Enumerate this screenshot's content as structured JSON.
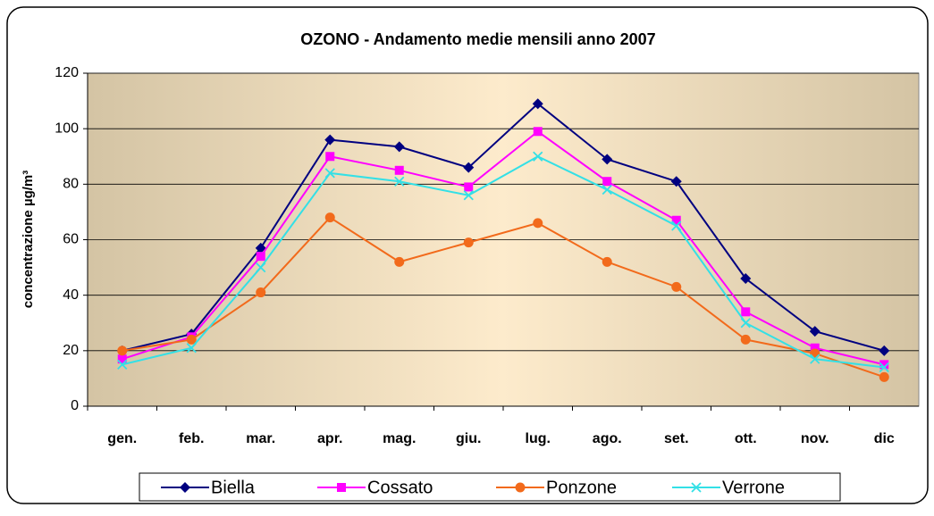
{
  "chart_data": {
    "type": "line",
    "title": "OZONO - Andamento medie mensili anno 2007",
    "y_label": "concentrazione µg/m³",
    "categories": [
      "gen.",
      "feb.",
      "mar.",
      "apr.",
      "mag.",
      "giu.",
      "lug.",
      "ago.",
      "set.",
      "ott.",
      "nov.",
      "dic"
    ],
    "series": [
      {
        "name": "Biella",
        "color": "#000080",
        "marker": "diamond",
        "values": [
          20,
          26,
          57,
          96,
          93.5,
          86,
          109,
          89,
          81,
          46,
          27,
          20
        ]
      },
      {
        "name": "Cossato",
        "color": "#ff00ff",
        "marker": "square",
        "values": [
          17,
          25,
          54,
          90,
          85,
          79,
          99,
          81,
          67,
          34,
          21,
          15
        ]
      },
      {
        "name": "Ponzone",
        "color": "#f26a1b",
        "marker": "circle",
        "values": [
          20,
          24,
          41,
          68,
          52,
          59,
          66,
          52,
          43,
          24,
          19,
          10.5
        ]
      },
      {
        "name": "Verrone",
        "color": "#33e0e6",
        "marker": "x",
        "values": [
          15,
          21,
          50,
          84,
          81,
          76,
          90,
          78,
          65,
          30,
          17,
          14
        ]
      }
    ],
    "ylim": [
      0,
      120
    ],
    "yticks": [
      0,
      20,
      40,
      60,
      80,
      100,
      120
    ],
    "grid": true,
    "legend": "bottom"
  }
}
